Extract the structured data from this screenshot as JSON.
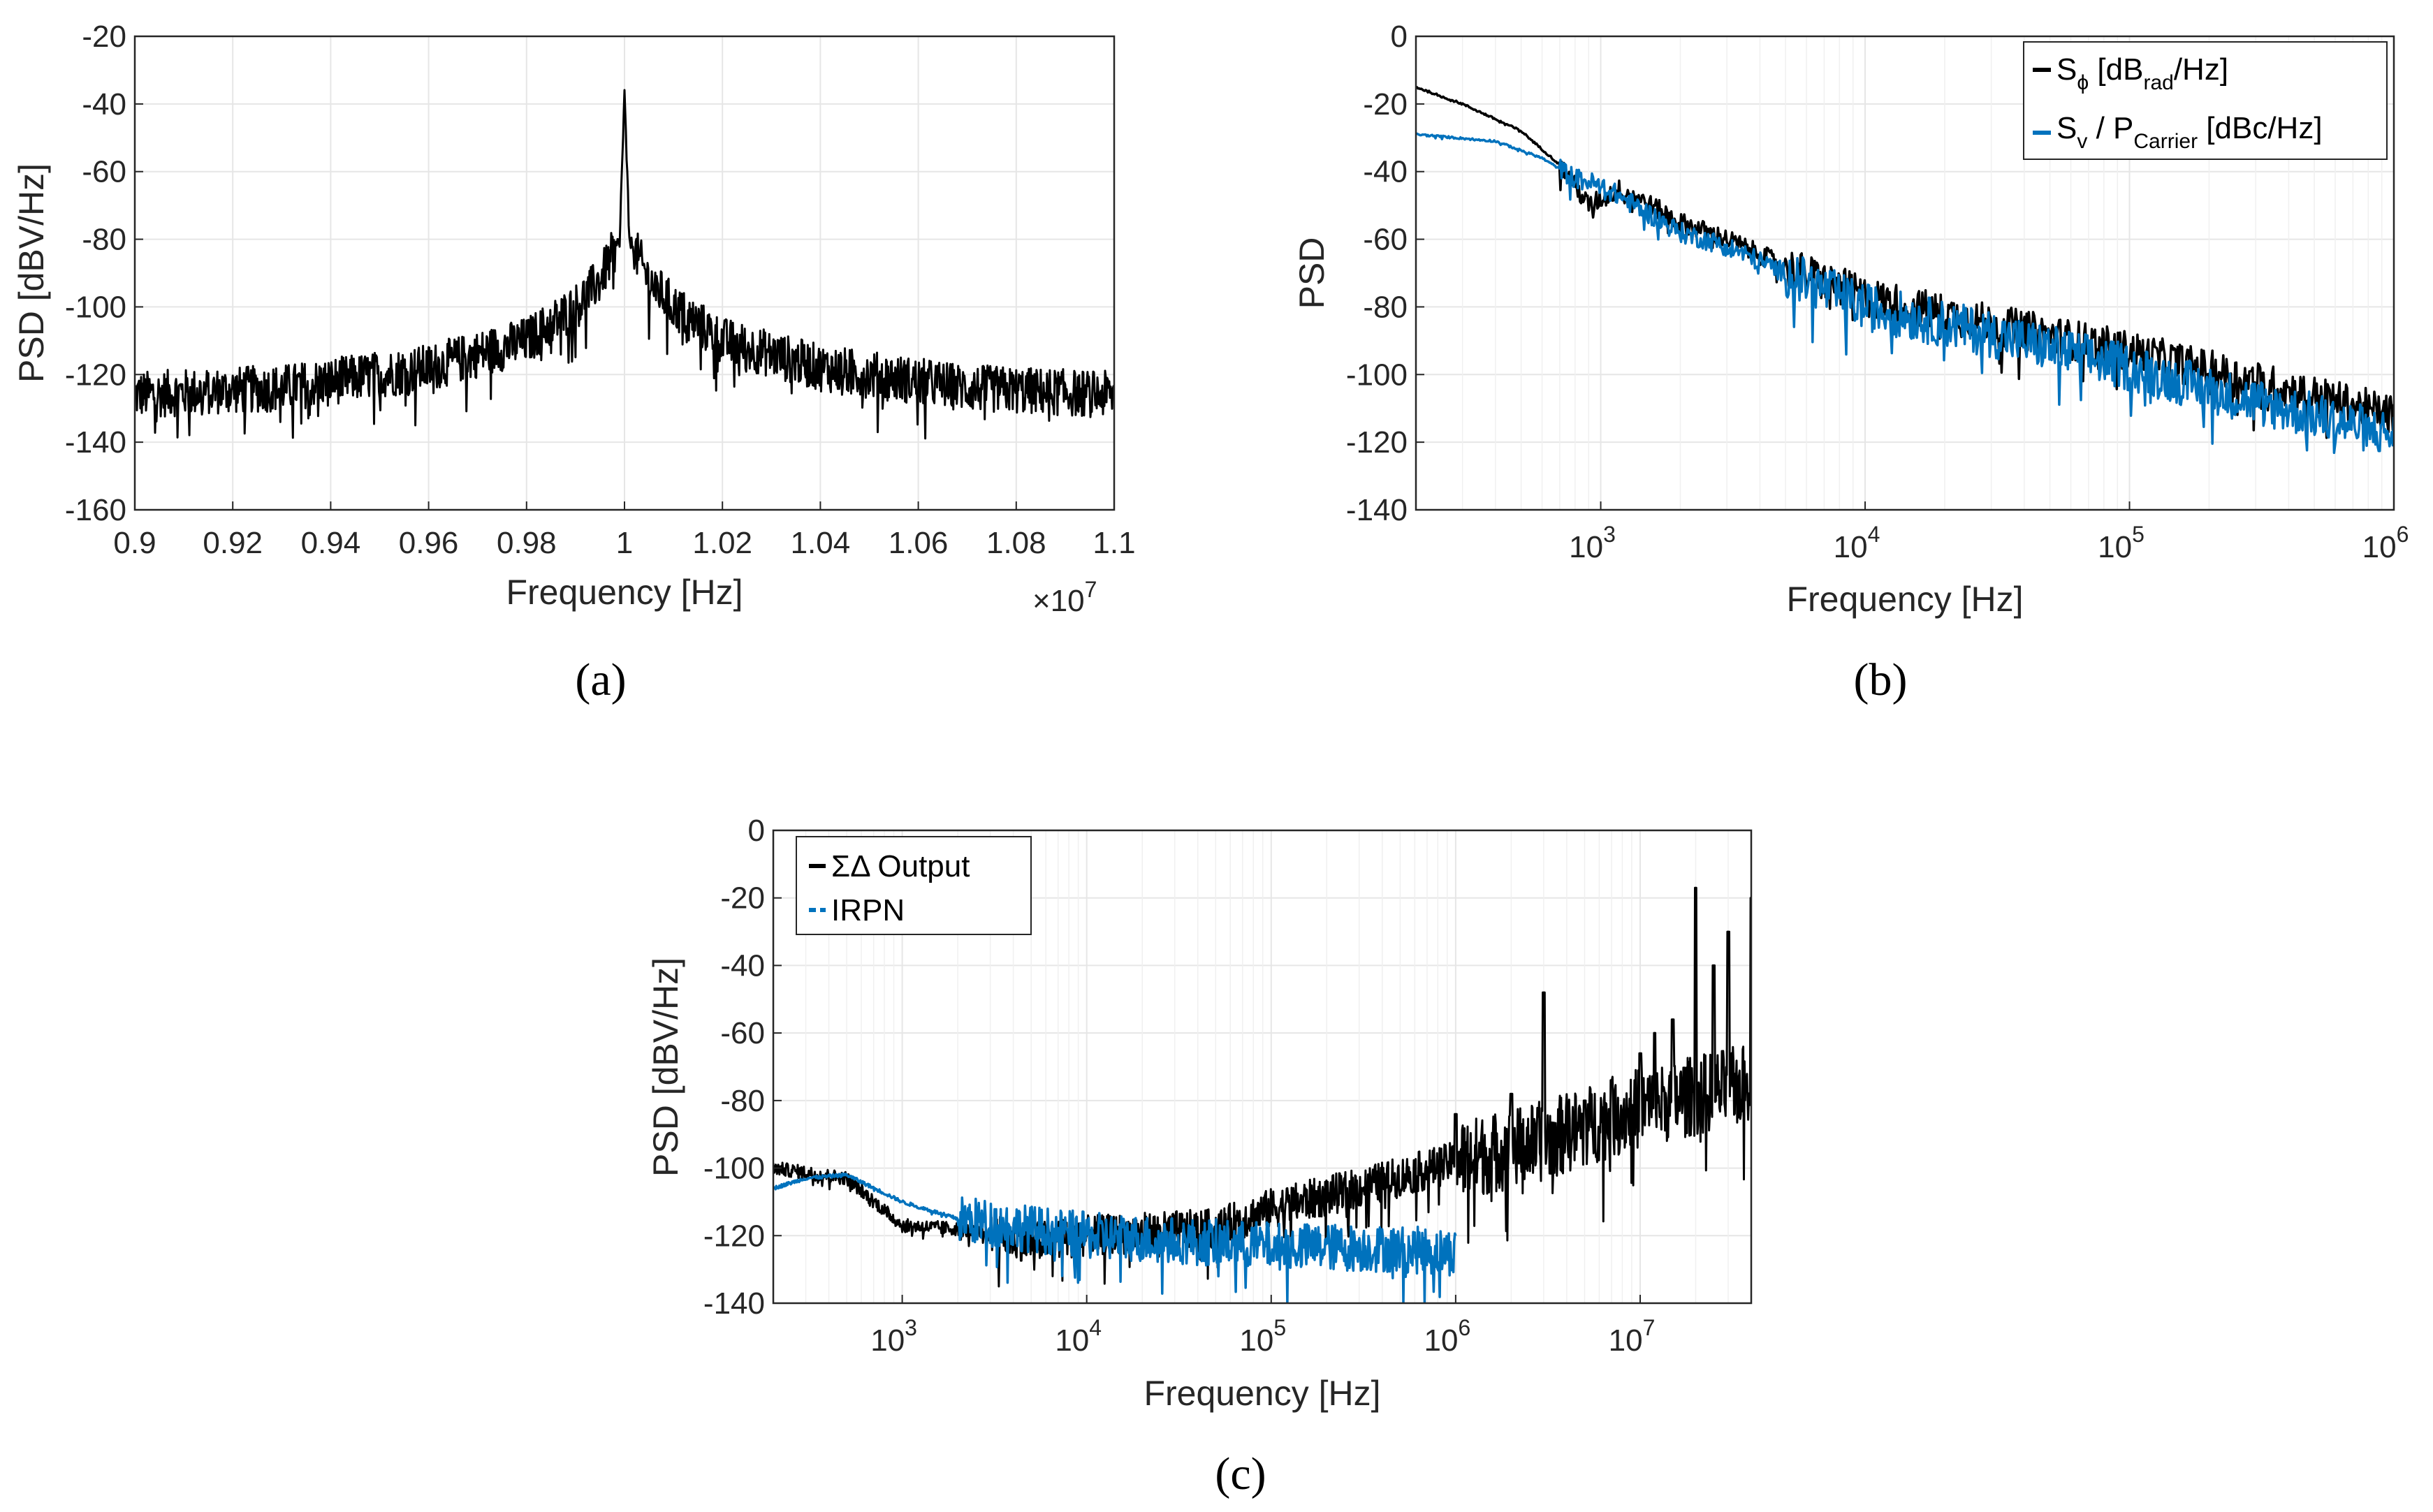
{
  "chart_data": [
    {
      "id": "a",
      "type": "line",
      "caption": "(a)",
      "xlabel": "Frequency [Hz]",
      "ylabel": "PSD [dBV/Hz]",
      "xscale": "linear",
      "x_multiplier": "×10^7",
      "x_multiplier_base": "×10",
      "x_multiplier_exp": "7",
      "xlim": [
        0.9,
        1.1
      ],
      "ylim": [
        -160,
        -20
      ],
      "xticks": [
        0.9,
        0.92,
        0.94,
        0.96,
        0.98,
        1.0,
        1.02,
        1.04,
        1.06,
        1.08,
        1.1
      ],
      "xtick_labels": [
        "0.9",
        "0.92",
        "0.94",
        "0.96",
        "0.98",
        "1",
        "1.02",
        "1.04",
        "1.06",
        "1.08",
        "1.1"
      ],
      "yticks": [
        -160,
        -140,
        -120,
        -100,
        -80,
        -60,
        -40,
        -20
      ],
      "ytick_labels": [
        "-160",
        "-140",
        "-120",
        "-100",
        "-80",
        "-60",
        "-40",
        "-20"
      ],
      "grid": true,
      "series": [
        {
          "name": "PSD",
          "color": "#000000",
          "points": [
            [
              0.9,
              -126
            ],
            [
              0.93,
              -124
            ],
            [
              0.96,
              -118
            ],
            [
              0.98,
              -110
            ],
            [
              0.99,
              -100
            ],
            [
              0.995,
              -92
            ],
            [
              0.999,
              -80
            ],
            [
              1.0,
              -37
            ],
            [
              1.001,
              -80
            ],
            [
              1.005,
              -92
            ],
            [
              1.01,
              -100
            ],
            [
              1.02,
              -110
            ],
            [
              1.04,
              -118
            ],
            [
              1.07,
              -124
            ],
            [
              1.1,
              -126
            ]
          ]
        }
      ]
    },
    {
      "id": "b",
      "type": "line",
      "caption": "(b)",
      "xlabel": "Frequency [Hz]",
      "ylabel": "PSD",
      "xscale": "log",
      "xlim": [
        200,
        1000000
      ],
      "ylim": [
        -140,
        0
      ],
      "xticks": [
        1000,
        10000,
        100000,
        1000000
      ],
      "xtick_exponents": [
        "3",
        "4",
        "5",
        "6"
      ],
      "xtick_base": "10",
      "yticks": [
        -140,
        -120,
        -100,
        -80,
        -60,
        -40,
        -20,
        0
      ],
      "ytick_labels": [
        "-140",
        "-120",
        "-100",
        "-80",
        "-60",
        "-40",
        "-20",
        "0"
      ],
      "grid": true,
      "legend_position": "top-right",
      "legend": {
        "s_phi_main": "S",
        "s_phi_sub": "ϕ",
        "s_phi_rest1": " [dB",
        "s_phi_rad": "rad",
        "s_phi_rest2": "/Hz]",
        "s_v_main": "S",
        "s_v_sub": "v",
        "s_v_rest1": " / P",
        "s_v_carrier": "Carrier",
        "s_v_rest2": " [dBc/Hz]"
      },
      "series": [
        {
          "name": "S_phi [dB_rad/Hz]",
          "color": "#000000",
          "points": [
            [
              200,
              -15
            ],
            [
              300,
              -20
            ],
            [
              500,
              -28
            ],
            [
              700,
              -38
            ],
            [
              900,
              -50
            ],
            [
              1200,
              -45
            ],
            [
              2000,
              -55
            ],
            [
              3000,
              -60
            ],
            [
              5000,
              -68
            ],
            [
              10000,
              -77
            ],
            [
              30000,
              -85
            ],
            [
              100000,
              -93
            ],
            [
              300000,
              -102
            ],
            [
              1000000,
              -112
            ]
          ]
        },
        {
          "name": "S_v / P_Carrier [dBc/Hz]",
          "color": "#0072BD",
          "points": [
            [
              200,
              -29
            ],
            [
              400,
              -31
            ],
            [
              600,
              -36
            ],
            [
              800,
              -42
            ],
            [
              1000,
              -44
            ],
            [
              2000,
              -58
            ],
            [
              3000,
              -62
            ],
            [
              5000,
              -70
            ],
            [
              10000,
              -80
            ],
            [
              30000,
              -88
            ],
            [
              100000,
              -98
            ],
            [
              300000,
              -108
            ],
            [
              1000000,
              -118
            ]
          ]
        }
      ]
    },
    {
      "id": "c",
      "type": "line",
      "caption": "(c)",
      "xlabel": "Frequency [Hz]",
      "ylabel": "PSD [dBV/Hz]",
      "xscale": "log",
      "xlim": [
        200,
        40000000
      ],
      "ylim": [
        -140,
        0
      ],
      "xticks": [
        1000,
        10000,
        100000,
        1000000,
        10000000
      ],
      "xtick_exponents": [
        "3",
        "4",
        "5",
        "6",
        "7"
      ],
      "xtick_base": "10",
      "yticks": [
        -140,
        -120,
        -100,
        -80,
        -60,
        -40,
        -20,
        0
      ],
      "ytick_labels": [
        "-140",
        "-120",
        "-100",
        "-80",
        "-60",
        "-40",
        "-20",
        "0"
      ],
      "grid": true,
      "legend_position": "top-left",
      "legend": {
        "sd_output": "ΣΔ Output",
        "irpn": "IRPN"
      },
      "series": [
        {
          "name": "ΣΔ Output",
          "color": "#000000",
          "points": [
            [
              200,
              -100
            ],
            [
              500,
              -103
            ],
            [
              1000,
              -117
            ],
            [
              2000,
              -118
            ],
            [
              5000,
              -122
            ],
            [
              10000,
              -120
            ],
            [
              50000,
              -118
            ],
            [
              100000,
              -112
            ],
            [
              300000,
              -106
            ],
            [
              1000000,
              -98
            ],
            [
              3000000,
              -92
            ],
            [
              10000000,
              -82
            ],
            [
              40000000,
              -75
            ]
          ]
        },
        {
          "name": "IRPN",
          "color": "#0072BD",
          "points": [
            [
              200,
              -106
            ],
            [
              300,
              -103
            ],
            [
              500,
              -102
            ],
            [
              1000,
              -110
            ],
            [
              2000,
              -115
            ],
            [
              5000,
              -118
            ],
            [
              10000,
              -120
            ],
            [
              100000,
              -123
            ],
            [
              500000,
              -124
            ],
            [
              1000000,
              -125
            ]
          ]
        }
      ]
    }
  ]
}
